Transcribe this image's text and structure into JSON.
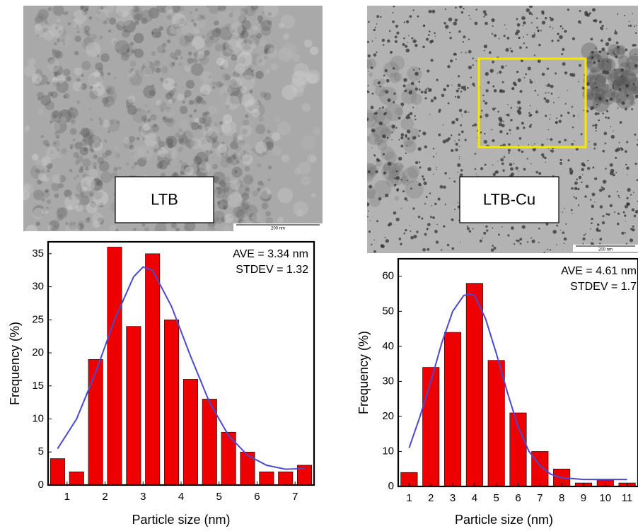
{
  "images": [
    {
      "label": "LTB",
      "scale_bar": "200 nm"
    },
    {
      "label": "LTB-Cu",
      "scale_bar": "200 nm"
    }
  ],
  "chart_data": [
    {
      "type": "histogram",
      "x_label": "Particle size (nm)",
      "y_label": "Frequency (%)",
      "annotations": [
        "AVE = 3.34 nm",
        "STDEV = 1.32"
      ],
      "bins": [
        0.5,
        1,
        1.5,
        2,
        2.5,
        3,
        3.5,
        4,
        4.5,
        5,
        5.5,
        6,
        6.5,
        7,
        7.5
      ],
      "values": [
        4,
        2,
        19,
        36,
        24,
        35,
        25,
        16,
        13,
        8,
        5,
        2,
        2,
        3
      ],
      "color": "#ee0000",
      "fit_color": "#4a4ad0",
      "fit": {
        "x": [
          0.75,
          1.25,
          1.75,
          2.25,
          2.75,
          3.0,
          3.25,
          3.75,
          4.25,
          4.75,
          5.25,
          5.75,
          6.25,
          6.75,
          7.25
        ],
        "values": [
          5.5,
          10,
          17,
          25,
          31.5,
          33,
          32.5,
          27,
          19.5,
          12.5,
          7.5,
          4.5,
          3,
          2.4,
          2.5
        ]
      },
      "xlim": [
        0.5,
        7.5
      ],
      "xticks": [
        1,
        2,
        3,
        4,
        5,
        6,
        7
      ],
      "ylim": [
        0,
        36.8
      ],
      "yticks": [
        0,
        5,
        10,
        15,
        20,
        25,
        30,
        35
      ]
    },
    {
      "type": "histogram",
      "x_label": "Particle size (nm)",
      "y_label": "Frequency (%)",
      "annotations": [
        "AVE = 4.61 nm",
        "STDEV = 1.7"
      ],
      "bins": [
        0.5,
        1.5,
        2.5,
        3.5,
        4.5,
        5.5,
        6.5,
        7.5,
        8.5,
        9.5,
        10.5,
        11.5
      ],
      "values": [
        4,
        34,
        44,
        58,
        36,
        21,
        10,
        5,
        1,
        2,
        1
      ],
      "color": "#ee0000",
      "fit_color": "#4a4ad0",
      "fit": {
        "x": [
          1,
          1.5,
          2,
          2.5,
          3,
          3.5,
          3.8,
          4,
          4.5,
          5,
          5.5,
          6,
          6.5,
          7,
          7.5,
          8,
          9,
          10,
          11
        ],
        "values": [
          11,
          20,
          30,
          41,
          50,
          54.5,
          55,
          54.5,
          48,
          38,
          27,
          17,
          10,
          6,
          3.5,
          2.5,
          2,
          2,
          2
        ]
      },
      "xlim": [
        0.5,
        11.5
      ],
      "xticks": [
        1,
        2,
        3,
        4,
        5,
        6,
        7,
        8,
        9,
        10,
        11
      ],
      "ylim": [
        0,
        65
      ],
      "yticks": [
        0,
        10,
        20,
        30,
        40,
        50,
        60
      ]
    }
  ]
}
